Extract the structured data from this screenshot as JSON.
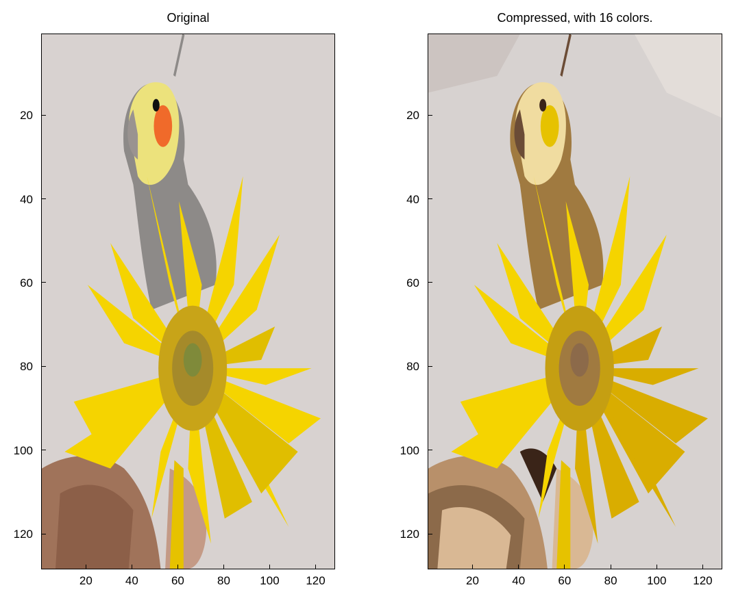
{
  "figure": {
    "left": {
      "title": "Original",
      "image_desc": "cockatiel perched on a hand holding a yellow sunflower"
    },
    "right": {
      "title": "Compressed, with 16 colors.",
      "image_desc": "same image posterized to a 16 color palette"
    }
  },
  "chart_data": [
    {
      "type": "image",
      "title": "Original",
      "x_ticks": [
        20,
        40,
        60,
        80,
        100,
        120
      ],
      "y_ticks": [
        20,
        40,
        60,
        80,
        100,
        120
      ],
      "xlim": [
        0.5,
        128.5
      ],
      "ylim": [
        128.5,
        0.5
      ]
    },
    {
      "type": "image",
      "title": "Compressed, with 16 colors.",
      "x_ticks": [
        20,
        40,
        60,
        80,
        100,
        120
      ],
      "y_ticks": [
        20,
        40,
        60,
        80,
        100,
        120
      ],
      "xlim": [
        0.5,
        128.5
      ],
      "ylim": [
        128.5,
        0.5
      ],
      "palette": [
        "#d7d2d0",
        "#ccc4c1",
        "#e3ddd9",
        "#f5d400",
        "#e6c200",
        "#d9ad00",
        "#c59f12",
        "#a07a40",
        "#8c6a4a",
        "#6b4c36",
        "#3a2418",
        "#b8906a",
        "#d9b894",
        "#f0dca0",
        "#b5582a",
        "#8b8077"
      ]
    }
  ]
}
